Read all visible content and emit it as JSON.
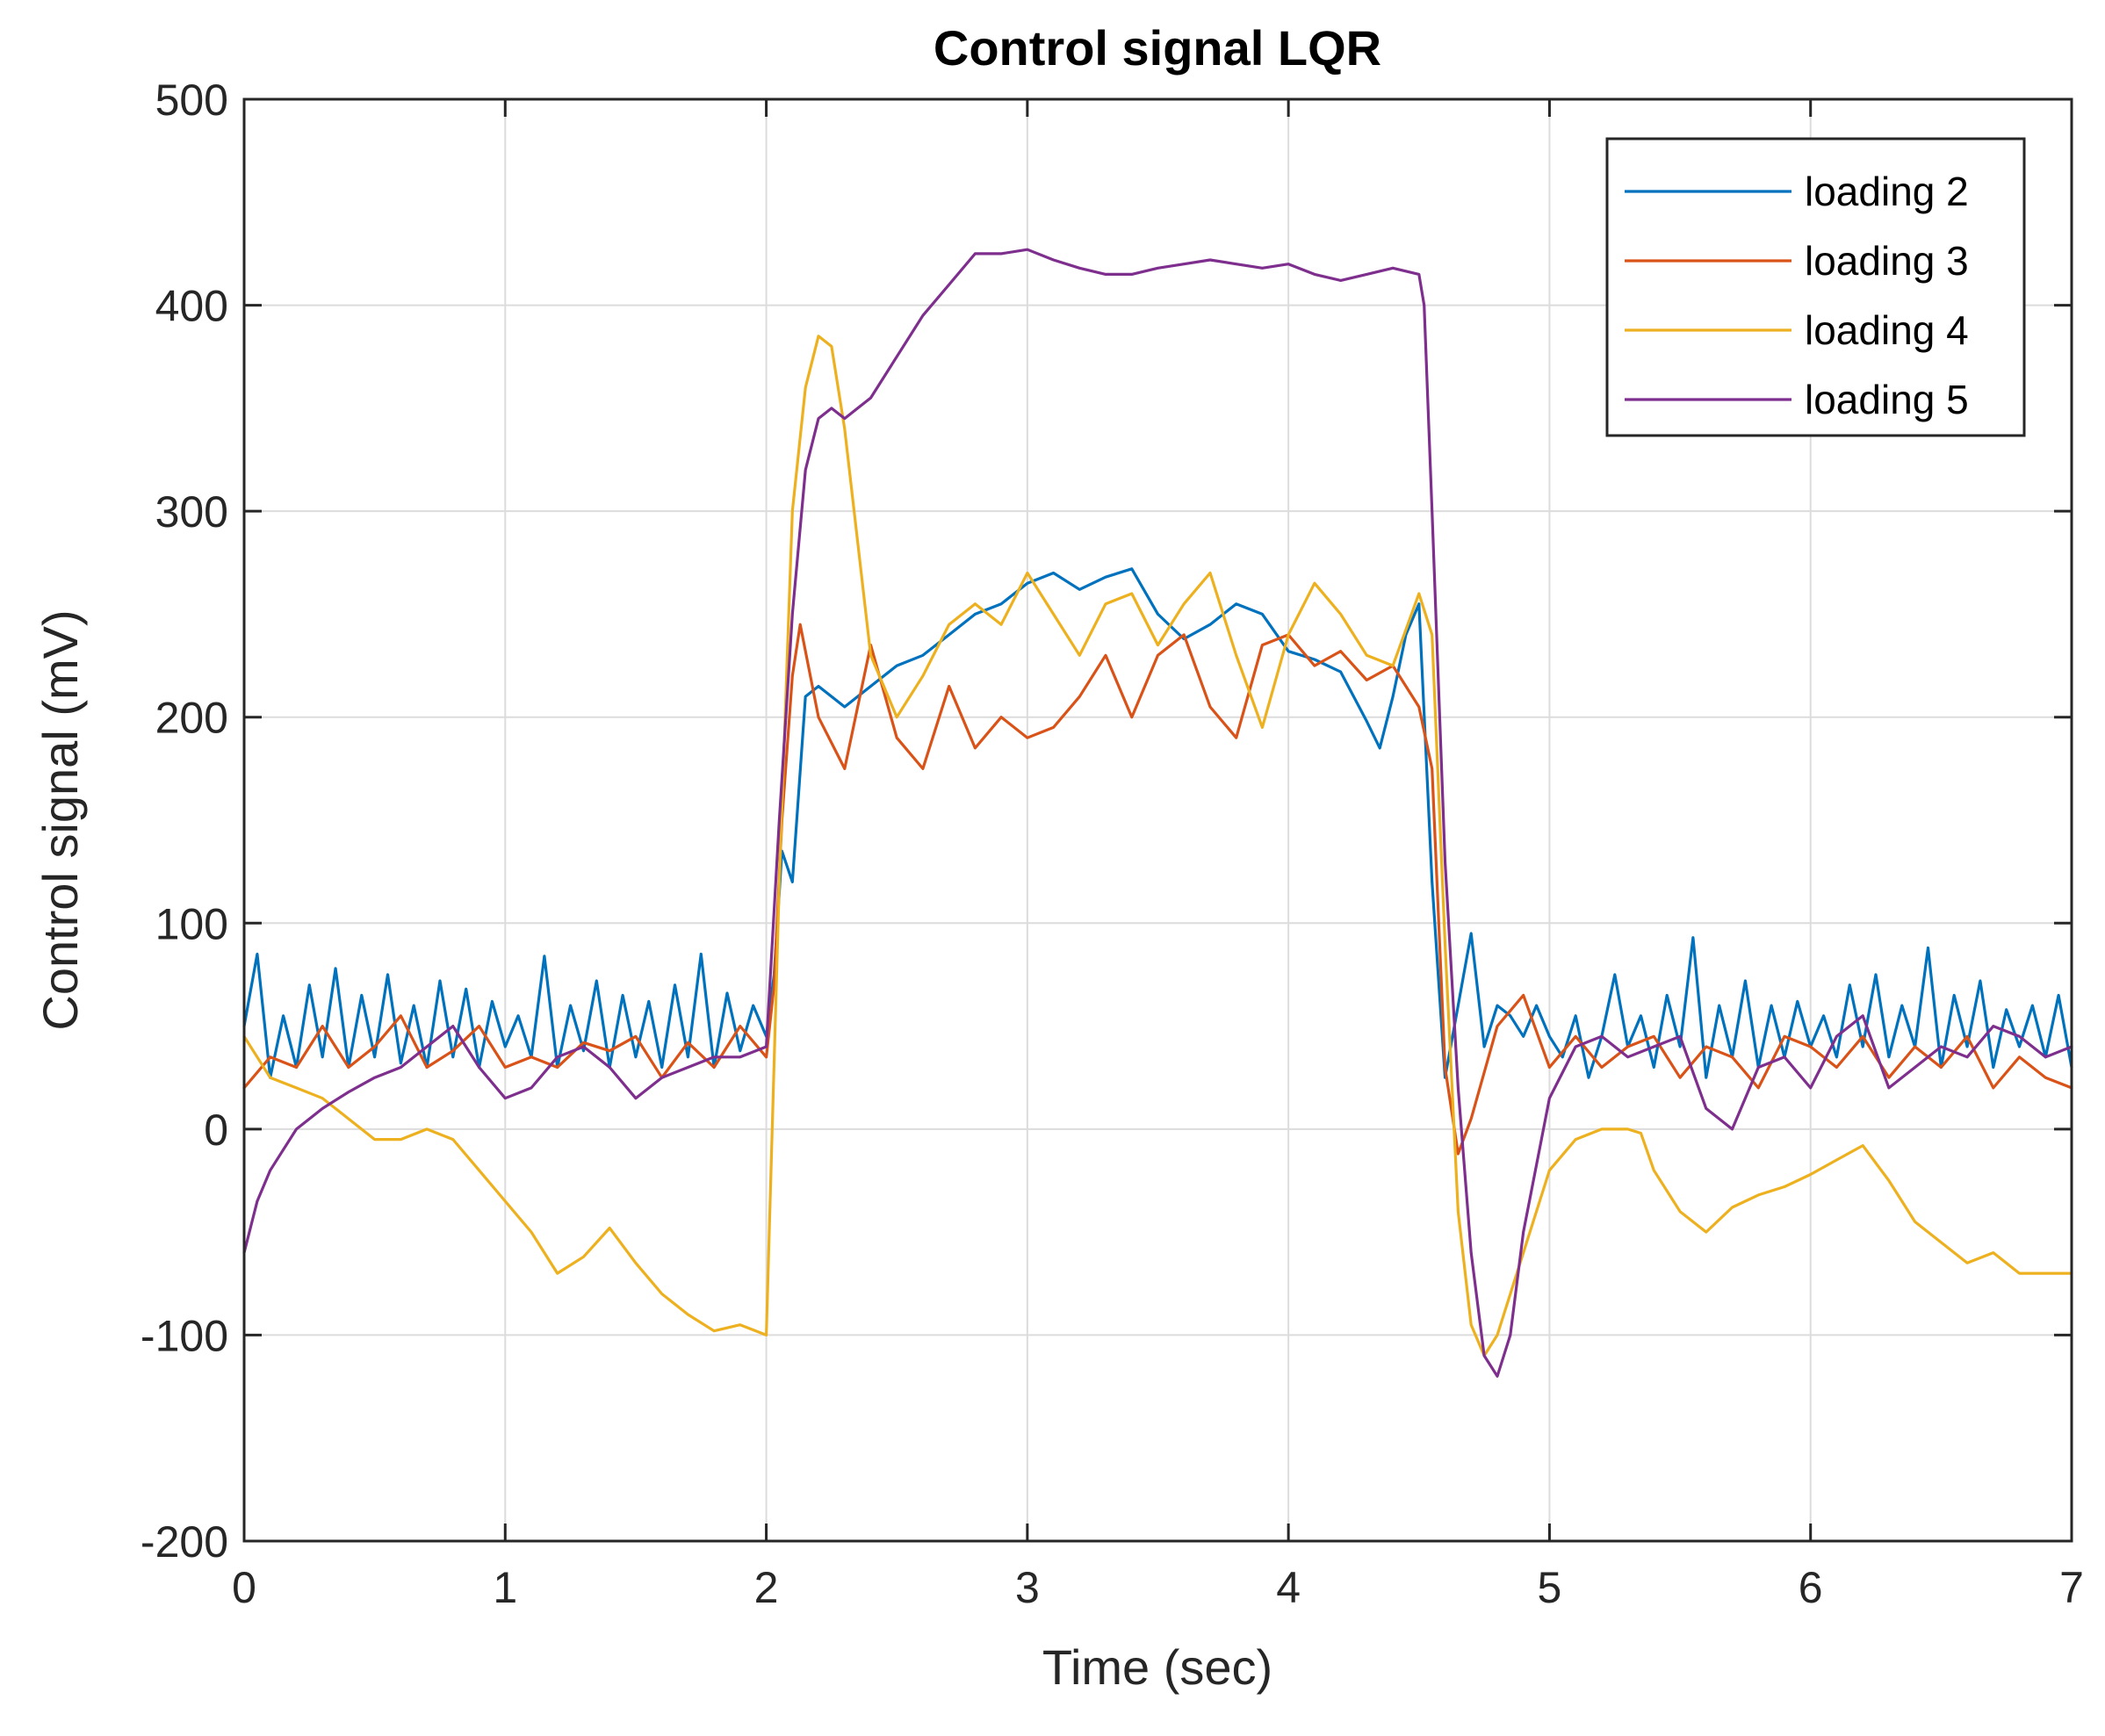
{
  "chart_data": {
    "type": "line",
    "title": "Control signal LQR",
    "xlabel": "Time (sec)",
    "ylabel": "Control signal (mV)",
    "xlim": [
      0,
      7
    ],
    "ylim": [
      -200,
      500
    ],
    "xticks": [
      0,
      1,
      2,
      3,
      4,
      5,
      6,
      7
    ],
    "xtick_labels": [
      "0",
      "1",
      "2",
      "3",
      "4",
      "5",
      "6",
      "7"
    ],
    "yticks": [
      -200,
      -100,
      0,
      100,
      200,
      300,
      400,
      500
    ],
    "ytick_labels": [
      "-200",
      "-100",
      "0",
      "100",
      "200",
      "300",
      "400",
      "500"
    ],
    "grid": true,
    "legend_position": "top-right",
    "series": [
      {
        "name": "loading 2",
        "color": "#0072BD",
        "x": [
          0,
          0.05,
          0.1,
          0.15,
          0.2,
          0.25,
          0.3,
          0.35,
          0.4,
          0.45,
          0.5,
          0.55,
          0.6,
          0.65,
          0.7,
          0.75,
          0.8,
          0.85,
          0.9,
          0.95,
          1.0,
          1.05,
          1.1,
          1.15,
          1.2,
          1.25,
          1.3,
          1.35,
          1.4,
          1.45,
          1.5,
          1.55,
          1.6,
          1.65,
          1.7,
          1.75,
          1.8,
          1.85,
          1.9,
          1.95,
          2.0,
          2.03,
          2.06,
          2.1,
          2.15,
          2.2,
          2.3,
          2.4,
          2.5,
          2.6,
          2.7,
          2.8,
          2.9,
          3.0,
          3.1,
          3.2,
          3.3,
          3.4,
          3.5,
          3.6,
          3.7,
          3.8,
          3.9,
          4.0,
          4.1,
          4.2,
          4.3,
          4.35,
          4.4,
          4.45,
          4.5,
          4.55,
          4.6,
          4.65,
          4.7,
          4.75,
          4.8,
          4.85,
          4.9,
          4.95,
          5.0,
          5.05,
          5.1,
          5.15,
          5.2,
          5.25,
          5.3,
          5.35,
          5.4,
          5.45,
          5.5,
          5.55,
          5.6,
          5.65,
          5.7,
          5.75,
          5.8,
          5.85,
          5.9,
          5.95,
          6.0,
          6.05,
          6.1,
          6.15,
          6.2,
          6.25,
          6.3,
          6.35,
          6.4,
          6.45,
          6.5,
          6.55,
          6.6,
          6.65,
          6.7,
          6.75,
          6.8,
          6.85,
          6.9,
          6.95,
          7.0
        ],
        "y": [
          50,
          85,
          25,
          55,
          30,
          70,
          35,
          78,
          30,
          65,
          35,
          75,
          32,
          60,
          30,
          72,
          35,
          68,
          30,
          62,
          40,
          55,
          35,
          84,
          30,
          60,
          38,
          72,
          30,
          65,
          35,
          62,
          30,
          70,
          35,
          85,
          30,
          66,
          38,
          60,
          45,
          75,
          135,
          120,
          210,
          215,
          205,
          215,
          225,
          230,
          240,
          250,
          255,
          265,
          270,
          262,
          268,
          272,
          250,
          238,
          245,
          255,
          250,
          232,
          228,
          222,
          198,
          185,
          210,
          240,
          255,
          120,
          25,
          60,
          95,
          40,
          60,
          55,
          45,
          60,
          45,
          35,
          55,
          25,
          45,
          75,
          40,
          55,
          30,
          65,
          40,
          93,
          25,
          60,
          35,
          72,
          30,
          60,
          35,
          62,
          40,
          55,
          35,
          70,
          40,
          75,
          35,
          60,
          40,
          88,
          30,
          65,
          40,
          72,
          30,
          58,
          40,
          60,
          35,
          65,
          30
        ]
      },
      {
        "name": "loading 3",
        "color": "#D95319",
        "x": [
          0,
          0.1,
          0.2,
          0.3,
          0.4,
          0.5,
          0.6,
          0.7,
          0.8,
          0.9,
          1.0,
          1.1,
          1.2,
          1.3,
          1.4,
          1.5,
          1.6,
          1.7,
          1.8,
          1.9,
          2.0,
          2.03,
          2.06,
          2.1,
          2.13,
          2.2,
          2.3,
          2.4,
          2.5,
          2.6,
          2.7,
          2.8,
          2.9,
          3.0,
          3.1,
          3.2,
          3.3,
          3.4,
          3.5,
          3.6,
          3.7,
          3.8,
          3.9,
          4.0,
          4.1,
          4.2,
          4.3,
          4.4,
          4.5,
          4.55,
          4.6,
          4.65,
          4.7,
          4.8,
          4.9,
          5.0,
          5.1,
          5.2,
          5.3,
          5.4,
          5.5,
          5.6,
          5.7,
          5.8,
          5.9,
          6.0,
          6.1,
          6.2,
          6.3,
          6.4,
          6.5,
          6.6,
          6.7,
          6.8,
          6.9,
          7.0
        ],
        "y": [
          20,
          35,
          30,
          50,
          30,
          40,
          55,
          30,
          38,
          50,
          30,
          35,
          30,
          42,
          38,
          45,
          25,
          42,
          30,
          50,
          35,
          70,
          150,
          220,
          245,
          200,
          175,
          235,
          190,
          175,
          215,
          185,
          200,
          190,
          195,
          210,
          230,
          200,
          230,
          240,
          205,
          190,
          235,
          240,
          225,
          232,
          218,
          225,
          205,
          175,
          30,
          -12,
          5,
          50,
          65,
          30,
          45,
          30,
          40,
          45,
          25,
          40,
          35,
          20,
          45,
          40,
          30,
          45,
          25,
          40,
          30,
          45,
          20,
          35,
          25,
          20
        ]
      },
      {
        "name": "loading 4",
        "color": "#EDB120",
        "x": [
          0,
          0.1,
          0.2,
          0.3,
          0.4,
          0.5,
          0.6,
          0.7,
          0.8,
          0.9,
          1.0,
          1.1,
          1.2,
          1.3,
          1.4,
          1.5,
          1.6,
          1.7,
          1.8,
          1.9,
          2.0,
          2.05,
          2.1,
          2.15,
          2.2,
          2.25,
          2.3,
          2.4,
          2.5,
          2.6,
          2.7,
          2.8,
          2.9,
          3.0,
          3.1,
          3.2,
          3.3,
          3.4,
          3.5,
          3.6,
          3.7,
          3.8,
          3.9,
          4.0,
          4.1,
          4.2,
          4.3,
          4.4,
          4.5,
          4.55,
          4.6,
          4.65,
          4.7,
          4.75,
          4.8,
          4.9,
          5.0,
          5.1,
          5.2,
          5.3,
          5.35,
          5.4,
          5.5,
          5.6,
          5.7,
          5.8,
          5.9,
          6.0,
          6.1,
          6.2,
          6.3,
          6.4,
          6.5,
          6.6,
          6.7,
          6.8,
          6.9,
          7.0
        ],
        "y": [
          45,
          25,
          20,
          15,
          5,
          -5,
          -5,
          0,
          -5,
          -20,
          -35,
          -50,
          -70,
          -62,
          -48,
          -65,
          -80,
          -90,
          -98,
          -95,
          -100,
          120,
          300,
          360,
          385,
          380,
          340,
          230,
          200,
          220,
          245,
          255,
          245,
          270,
          250,
          230,
          255,
          260,
          235,
          255,
          270,
          230,
          195,
          240,
          265,
          250,
          230,
          225,
          260,
          240,
          90,
          -40,
          -95,
          -110,
          -100,
          -60,
          -20,
          -5,
          0,
          0,
          -2,
          -20,
          -40,
          -50,
          -38,
          -32,
          -28,
          -22,
          -15,
          -8,
          -25,
          -45,
          -55,
          -65,
          -60,
          -70,
          -70,
          -70
        ]
      },
      {
        "name": "loading 5",
        "color": "#7E2F8E",
        "x": [
          0,
          0.05,
          0.1,
          0.15,
          0.2,
          0.3,
          0.4,
          0.5,
          0.6,
          0.7,
          0.8,
          0.9,
          1.0,
          1.1,
          1.2,
          1.3,
          1.4,
          1.5,
          1.6,
          1.7,
          1.8,
          1.9,
          2.0,
          2.05,
          2.1,
          2.15,
          2.2,
          2.25,
          2.3,
          2.35,
          2.4,
          2.5,
          2.6,
          2.7,
          2.8,
          2.9,
          3.0,
          3.1,
          3.2,
          3.3,
          3.4,
          3.5,
          3.6,
          3.7,
          3.8,
          3.9,
          4.0,
          4.1,
          4.2,
          4.3,
          4.4,
          4.5,
          4.52,
          4.55,
          4.6,
          4.65,
          4.7,
          4.75,
          4.8,
          4.85,
          4.9,
          5.0,
          5.1,
          5.2,
          5.3,
          5.4,
          5.5,
          5.6,
          5.7,
          5.8,
          5.9,
          6.0,
          6.1,
          6.2,
          6.3,
          6.4,
          6.5,
          6.6,
          6.7,
          6.8,
          6.9,
          7.0
        ],
        "y": [
          -60,
          -35,
          -20,
          -10,
          0,
          10,
          18,
          25,
          30,
          40,
          50,
          30,
          15,
          20,
          35,
          40,
          30,
          15,
          25,
          30,
          35,
          35,
          40,
          150,
          250,
          320,
          345,
          350,
          345,
          350,
          355,
          375,
          395,
          410,
          425,
          425,
          427,
          422,
          418,
          415,
          415,
          418,
          420,
          422,
          420,
          418,
          420,
          415,
          412,
          415,
          418,
          415,
          400,
          300,
          130,
          20,
          -60,
          -110,
          -120,
          -100,
          -50,
          15,
          40,
          45,
          35,
          40,
          45,
          10,
          0,
          30,
          35,
          20,
          45,
          55,
          20,
          30,
          40,
          35,
          50,
          45,
          35,
          40
        ]
      }
    ]
  }
}
